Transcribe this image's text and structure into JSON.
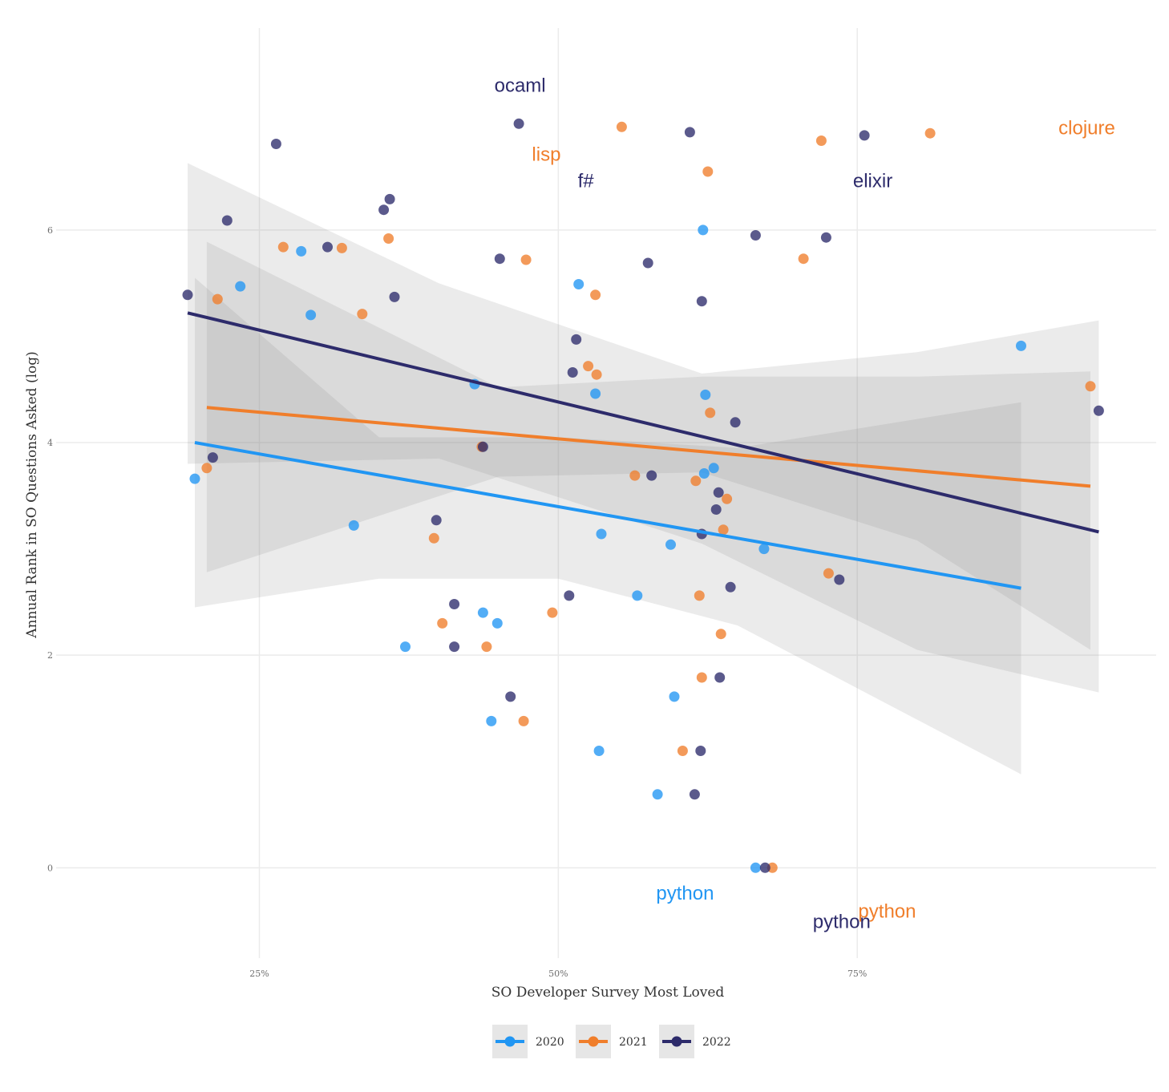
{
  "chart_data": {
    "type": "scatter",
    "title": "",
    "xlabel": "SO Developer Survey Most Loved",
    "ylabel": "Annual Rank in SO Questions Asked (log)",
    "xlim": [
      0.08,
      1.0
    ],
    "ylim": [
      -0.85,
      7.9
    ],
    "x_ticks": [
      {
        "value": 0.25,
        "label": "25%"
      },
      {
        "value": 0.5,
        "label": "50%"
      },
      {
        "value": 0.75,
        "label": "75%"
      }
    ],
    "y_ticks": [
      {
        "value": 0,
        "label": "0"
      },
      {
        "value": 2,
        "label": "2"
      },
      {
        "value": 4,
        "label": "4"
      },
      {
        "value": 6,
        "label": "6"
      }
    ],
    "grid": true,
    "legend_position": "bottom",
    "series": [
      {
        "name": "2020",
        "color": "#2196f3",
        "points": [
          [
            0.196,
            3.66
          ],
          [
            0.234,
            5.47
          ],
          [
            0.285,
            5.8
          ],
          [
            0.293,
            5.2
          ],
          [
            0.329,
            3.22
          ],
          [
            0.372,
            2.08
          ],
          [
            0.43,
            4.55
          ],
          [
            0.437,
            2.4
          ],
          [
            0.444,
            1.38
          ],
          [
            0.449,
            2.3
          ],
          [
            0.517,
            5.49
          ],
          [
            0.531,
            4.46
          ],
          [
            0.536,
            3.14
          ],
          [
            0.534,
            1.1
          ],
          [
            0.566,
            2.56
          ],
          [
            0.583,
            0.69
          ],
          [
            0.594,
            3.04
          ],
          [
            0.597,
            1.61
          ],
          [
            0.621,
            6.0
          ],
          [
            0.622,
            3.71
          ],
          [
            0.623,
            4.45
          ],
          [
            0.63,
            3.76
          ],
          [
            0.665,
            0.0
          ],
          [
            0.672,
            3.0
          ],
          [
            0.887,
            4.91
          ]
        ],
        "trend": {
          "x": [
            0.196,
            0.887
          ],
          "y": [
            4.0,
            2.63
          ]
        },
        "band": {
          "x": [
            0.196,
            0.35,
            0.5,
            0.65,
            0.887
          ],
          "lower": [
            2.45,
            2.72,
            2.72,
            2.28,
            0.88
          ],
          "upper": [
            5.55,
            4.05,
            4.05,
            3.95,
            4.38
          ]
        }
      },
      {
        "name": "2021",
        "color": "#f07e2b",
        "points": [
          [
            0.206,
            3.76
          ],
          [
            0.215,
            5.35
          ],
          [
            0.27,
            5.84
          ],
          [
            0.319,
            5.83
          ],
          [
            0.336,
            5.21
          ],
          [
            0.358,
            5.92
          ],
          [
            0.396,
            3.1
          ],
          [
            0.403,
            2.3
          ],
          [
            0.436,
            3.96
          ],
          [
            0.44,
            2.08
          ],
          [
            0.471,
            1.38
          ],
          [
            0.473,
            5.72
          ],
          [
            0.495,
            2.4
          ],
          [
            0.525,
            4.72
          ],
          [
            0.531,
            5.39
          ],
          [
            0.532,
            4.64
          ],
          [
            0.553,
            6.97
          ],
          [
            0.564,
            3.69
          ],
          [
            0.604,
            1.1
          ],
          [
            0.615,
            3.64
          ],
          [
            0.618,
            2.56
          ],
          [
            0.62,
            1.79
          ],
          [
            0.625,
            6.55
          ],
          [
            0.627,
            4.28
          ],
          [
            0.636,
            2.2
          ],
          [
            0.638,
            3.18
          ],
          [
            0.641,
            3.47
          ],
          [
            0.679,
            0.0
          ],
          [
            0.705,
            5.73
          ],
          [
            0.72,
            6.84
          ],
          [
            0.726,
            2.77
          ],
          [
            0.811,
            6.91
          ],
          [
            0.945,
            4.53
          ]
        ],
        "trend": {
          "x": [
            0.206,
            0.945
          ],
          "y": [
            4.33,
            3.59
          ]
        },
        "band": {
          "x": [
            0.206,
            0.45,
            0.62,
            0.8,
            0.945
          ],
          "lower": [
            2.78,
            3.68,
            3.72,
            3.08,
            2.05
          ],
          "upper": [
            5.89,
            4.52,
            4.62,
            4.62,
            4.67
          ]
        }
      },
      {
        "name": "2022",
        "color": "#2d2b6b",
        "points": [
          [
            0.19,
            5.39
          ],
          [
            0.211,
            3.86
          ],
          [
            0.223,
            6.09
          ],
          [
            0.264,
            6.81
          ],
          [
            0.307,
            5.84
          ],
          [
            0.354,
            6.19
          ],
          [
            0.359,
            6.29
          ],
          [
            0.363,
            5.37
          ],
          [
            0.398,
            3.27
          ],
          [
            0.413,
            2.48
          ],
          [
            0.413,
            2.08
          ],
          [
            0.437,
            3.96
          ],
          [
            0.451,
            5.73
          ],
          [
            0.46,
            1.61
          ],
          [
            0.467,
            7.0
          ],
          [
            0.509,
            2.56
          ],
          [
            0.512,
            4.66
          ],
          [
            0.515,
            4.97
          ],
          [
            0.575,
            5.69
          ],
          [
            0.578,
            3.69
          ],
          [
            0.61,
            6.92
          ],
          [
            0.614,
            0.69
          ],
          [
            0.619,
            1.1
          ],
          [
            0.62,
            3.14
          ],
          [
            0.62,
            5.33
          ],
          [
            0.632,
            3.37
          ],
          [
            0.634,
            3.53
          ],
          [
            0.635,
            1.79
          ],
          [
            0.644,
            2.64
          ],
          [
            0.648,
            4.19
          ],
          [
            0.665,
            5.95
          ],
          [
            0.673,
            0.0
          ],
          [
            0.724,
            5.93
          ],
          [
            0.735,
            2.71
          ],
          [
            0.756,
            6.89
          ],
          [
            0.952,
            4.3
          ]
        ],
        "trend": {
          "x": [
            0.19,
            0.952
          ],
          "y": [
            5.22,
            3.16
          ]
        },
        "band": {
          "x": [
            0.19,
            0.4,
            0.62,
            0.8,
            0.952
          ],
          "lower": [
            3.8,
            3.85,
            3.05,
            2.05,
            1.65
          ],
          "upper": [
            6.63,
            5.5,
            4.65,
            4.85,
            5.15
          ]
        }
      }
    ],
    "annotations": [
      {
        "text": "ocaml",
        "x": 0.468,
        "y": 7.35,
        "color": "#2d2b6b"
      },
      {
        "text": "lisp",
        "x": 0.49,
        "y": 6.7,
        "color": "#f07e2b"
      },
      {
        "text": "f#",
        "x": 0.523,
        "y": 6.45,
        "color": "#2d2b6b"
      },
      {
        "text": "elixir",
        "x": 0.763,
        "y": 6.45,
        "color": "#2d2b6b"
      },
      {
        "text": "clojure",
        "x": 0.942,
        "y": 6.95,
        "color": "#f07e2b"
      },
      {
        "text": "python",
        "x": 0.606,
        "y": -0.25,
        "color": "#2196f3"
      },
      {
        "text": "python",
        "x": 0.775,
        "y": -0.42,
        "color": "#f07e2b"
      },
      {
        "text": "python",
        "x": 0.737,
        "y": -0.52,
        "color": "#2d2b6b"
      }
    ]
  },
  "legend": [
    {
      "label": "2020",
      "color": "#2196f3"
    },
    {
      "label": "2021",
      "color": "#f07e2b"
    },
    {
      "label": "2022",
      "color": "#2d2b6b"
    }
  ]
}
